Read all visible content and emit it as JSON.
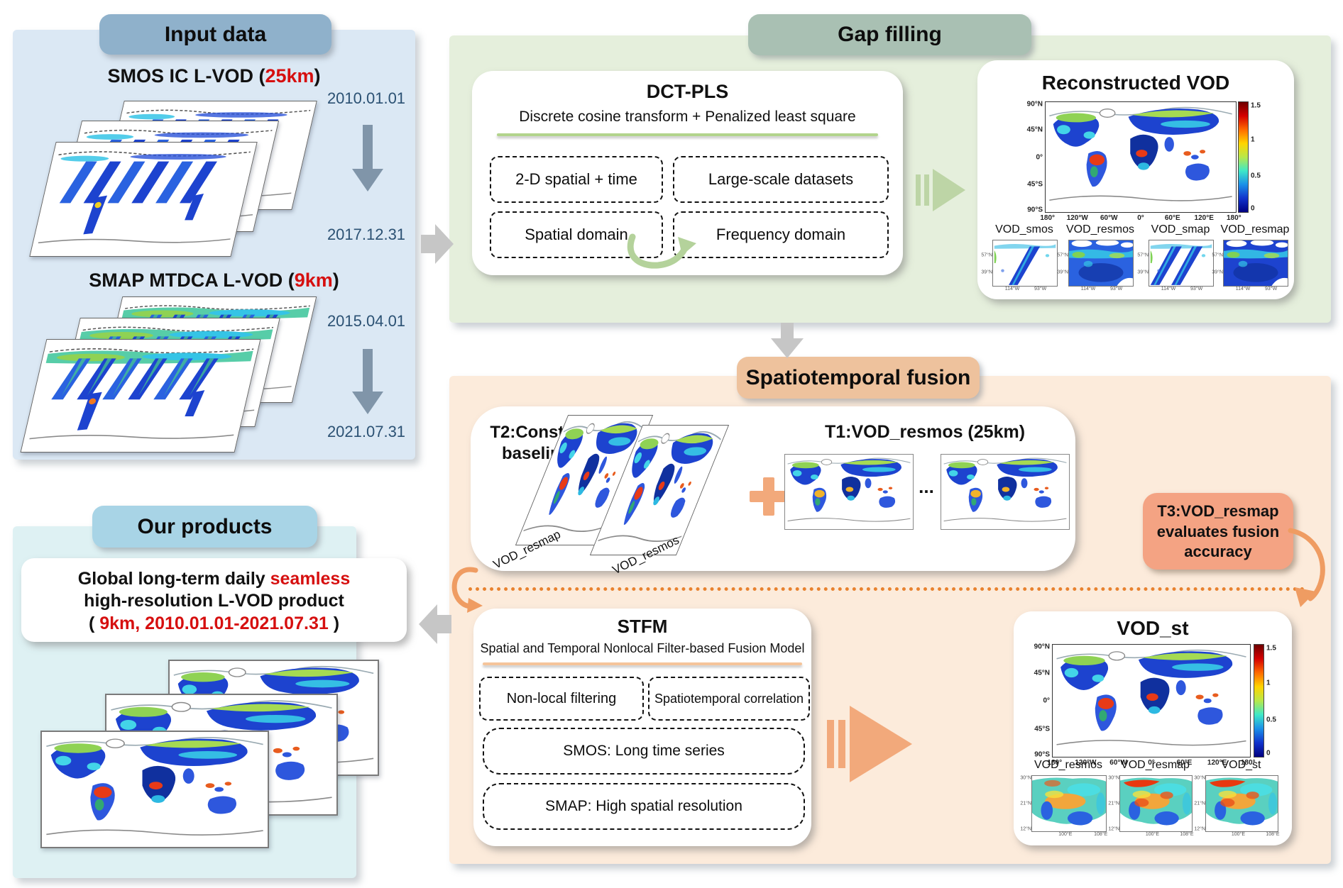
{
  "input": {
    "header": "Input data",
    "smos_title_pre": "SMOS IC L-VOD (",
    "smos_res": "25km",
    "smos_title_post": ")",
    "smos_date_start": "2010.01.01",
    "smos_date_end": "2017.12.31",
    "smap_title_pre": "SMAP MTDCA L-VOD (",
    "smap_res": "9km",
    "smap_title_post": ")",
    "smap_date_start": "2015.04.01",
    "smap_date_end": "2021.07.31"
  },
  "gap": {
    "header": "Gap filling",
    "dct_title": "DCT-PLS",
    "dct_subtitle": "Discrete cosine transform + Penalized least square",
    "dct_box1": "2-D spatial + time",
    "dct_box2": "Large-scale datasets",
    "dct_box3": "Spatial domain",
    "dct_box4": "Frequency domain",
    "recon_title": "Reconstructed VOD",
    "cb_ticks": [
      "1.5",
      "1",
      "0.5",
      "0"
    ],
    "yticks": [
      "90°N",
      "45°N",
      "0°",
      "45°S",
      "90°S"
    ],
    "xticks": [
      "180°",
      "120°W",
      "60°W",
      "0°",
      "60°E",
      "120°E",
      "180°"
    ],
    "small_labels": [
      "VOD_smos",
      "VOD_resmos",
      "VOD_smap",
      "VOD_resmap"
    ],
    "small_yticks": [
      "57°N",
      "39°N"
    ],
    "small_xticks": [
      "114°W",
      "93°W"
    ]
  },
  "fusion": {
    "header": "Spatiotemporal fusion",
    "t2_line1": "T2:Constructing",
    "t2_line2": "baseline data",
    "t2_map1": "VOD_resmap",
    "t2_map2": "VOD_resmos",
    "t1_title": "T1:VOD_resmos (25km)",
    "ellipsis": "...",
    "t3_line1": "T3:VOD_resmap",
    "t3_line2": "evaluates fusion",
    "t3_line3": "accuracy",
    "stfm_title": "STFM",
    "stfm_subtitle": "Spatial and Temporal Nonlocal Filter-based Fusion Model",
    "stfm_box1": "Non-local filtering",
    "stfm_box2": "Spatiotemporal correlation",
    "stfm_box3": "SMOS: Long time series",
    "stfm_box4": "SMAP: High spatial resolution",
    "vodst_title": "VOD_st",
    "cb_ticks": [
      "1.5",
      "1",
      "0.5",
      "0"
    ],
    "yticks": [
      "90°N",
      "45°N",
      "0°",
      "45°S",
      "90°S"
    ],
    "xticks": [
      "180°",
      "120°W",
      "60°W",
      "0°",
      "60°E",
      "120°E",
      "180°"
    ],
    "small_labels": [
      "VOD_resmos",
      "VOD_resmap",
      "VOD_st"
    ],
    "small_yticks": [
      "30°N",
      "21°N",
      "12°N"
    ],
    "small_xticks": [
      "100°E",
      "108°E"
    ]
  },
  "products": {
    "header": "Our products",
    "line1_black": "Global long-term daily ",
    "line1_red": "seamless",
    "line2": "high-resolution L-VOD product",
    "line3_pre": "( ",
    "line3_red": "9km, 2010.01.01-2021.07.31",
    "line3_post": " )"
  },
  "colors": {
    "highlight_red": "#d60f0f",
    "input_accent": "#8fb1cb",
    "gap_accent": "#a9c0b3",
    "fusion_accent": "#eec29d",
    "products_accent": "#a8d4e6",
    "colorbar": "jet 0-1.5"
  }
}
